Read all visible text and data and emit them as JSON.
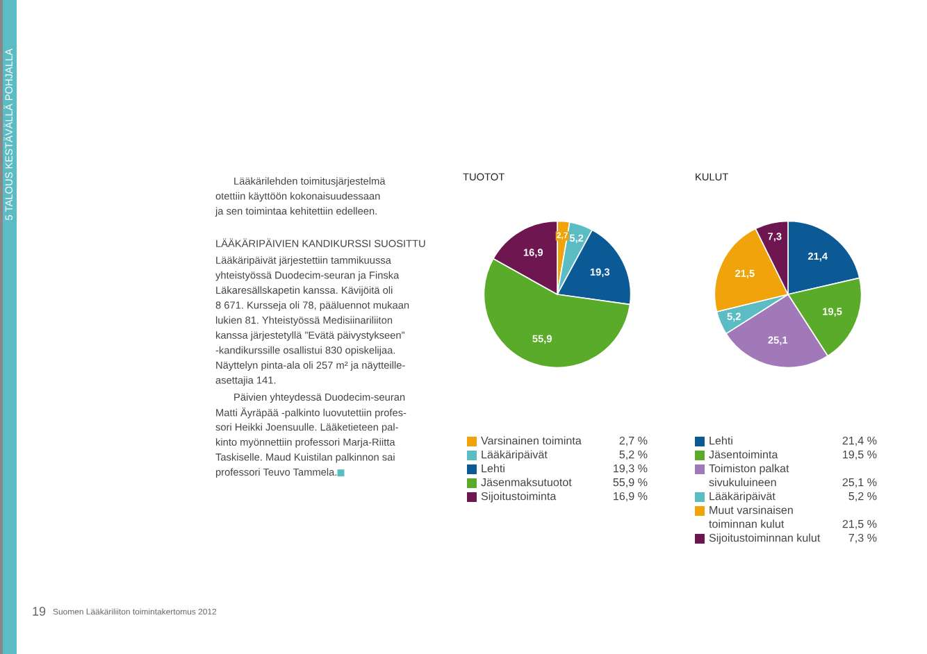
{
  "chart_data": [
    {
      "type": "other",
      "annotations": [
        "Lääkärilehden toimitusjärjestelmä\notettiin käyttöön kokonaisuudessaan\nja sen toimintaa kehitettiin edelleen.",
        "LÄÄKÄRIPÄIVIEN KANDIKURSSI SUOSITTU",
        "Lääkäripäivät järjestettiin tammikuussa\nyhteistyössä Duodecim-seuran ja Finska\nLäkaresällskapetin kanssa. Kävijöitä oli\n8 671. Kursseja oli 78, pääluennot mukaan\nlukien 81. Yhteistyössä Medisiinariliiton\nkanssa järjestetyllä ”Evätä päivystykseen”\n-kandikurssille osallistui 830 opiskelijaa.\nNäyttelyn pinta-ala oli 257 m² ja näytteille-\nasettajia 141.",
        "Päivien yhteydessä Duodecim-seuran\nMatti Äyräpää -palkinto luovutettiin profes-\nsori Heikki Joensuulle. Lääketieteen pal-\nkinto myönnettiin professori Marja-Riitta\nTaskiselle. Maud Kuistilan palkinnon sai\nprofessori Teuvo Tammela.",
        "5 TALOUS KESTÄVÄLLÄ POHJALLA",
        "19",
        "Suomen Lääkäriliiton toimintakertomus 2012"
      ]
    },
    {
      "type": "pie",
      "title": "TUOTOT",
      "legend": "bottom",
      "categories": [
        "Varsinainen toiminta",
        "Lääkäripäivät",
        "Lehti",
        "Jäsenmaksutuotot",
        "Sijoitustoiminta"
      ],
      "values": [
        2.7,
        5.2,
        19.3,
        55.9,
        16.9
      ],
      "colors": [
        "#f0a30a",
        "#5bbcc4",
        "#0b5a96",
        "#5aab2a",
        "#6e1650"
      ],
      "value_labels": [
        "2,7",
        "5,2",
        "19,3",
        "55,9",
        "16,9"
      ],
      "annotations": [
        "2,7 %",
        "5,2 %",
        "19,3 %",
        "55,9 %",
        "16,9 %"
      ]
    },
    {
      "type": "pie",
      "title": "KULUT",
      "legend": "bottom",
      "categories": [
        "Lehti",
        "Jäsentoiminta",
        "Toimiston palkat\nsivukuluineen",
        "Lääkäripäivät",
        "Muut varsinaisen\ntoiminnan kulut",
        "Sijoitustoiminnan kulut"
      ],
      "values": [
        21.4,
        19.5,
        25.1,
        5.2,
        21.5,
        7.3
      ],
      "colors": [
        "#0b5a96",
        "#5aab2a",
        "#a178b8",
        "#5bbcc4",
        "#f0a30a",
        "#6e1650"
      ],
      "value_labels": [
        "21,4",
        "19,5",
        "25,1",
        "5,2",
        "21,5",
        "7,3"
      ],
      "annotations": [
        "21,4 %",
        "19,5 %",
        "25,1 %",
        "5,2 %",
        "21,5 %",
        "7,3 %"
      ]
    }
  ]
}
